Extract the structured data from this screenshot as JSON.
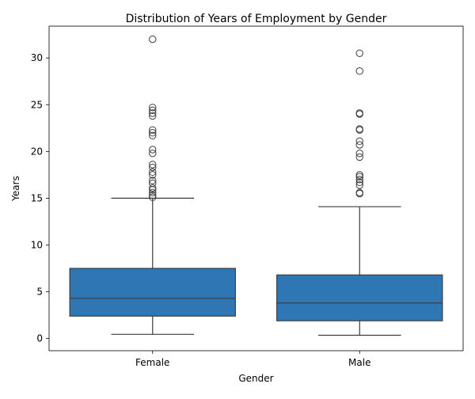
{
  "chart_data": {
    "type": "box",
    "title": "Distribution of Years of Employment by Gender",
    "xlabel": "Gender",
    "ylabel": "Years",
    "ylim": [
      -1.3,
      33.4
    ],
    "yticks": [
      0,
      5,
      10,
      15,
      20,
      25,
      30
    ],
    "grid": false,
    "legend": "none",
    "box_color": "#2f77b4",
    "line_color": "#3d3d3d",
    "categories": [
      "Female",
      "Male"
    ],
    "boxes": [
      {
        "category": "Female",
        "whisker_low": 0.45,
        "q1": 2.4,
        "median": 4.3,
        "q3": 7.5,
        "whisker_high": 15.0,
        "outliers": [
          15.1,
          15.3,
          15.6,
          15.9,
          16.1,
          16.6,
          16.9,
          17.5,
          17.8,
          18.3,
          18.6,
          19.8,
          20.2,
          21.7,
          22.0,
          22.3,
          23.8,
          24.1,
          24.4,
          24.7,
          32.0
        ]
      },
      {
        "category": "Male",
        "whisker_low": 0.35,
        "q1": 1.9,
        "median": 3.8,
        "q3": 6.8,
        "whisker_high": 14.1,
        "outliers": [
          15.5,
          15.6,
          16.4,
          16.7,
          17.0,
          17.3,
          17.5,
          19.4,
          19.8,
          20.7,
          21.1,
          22.3,
          22.4,
          24.0,
          24.1,
          28.6,
          30.5
        ]
      }
    ]
  }
}
